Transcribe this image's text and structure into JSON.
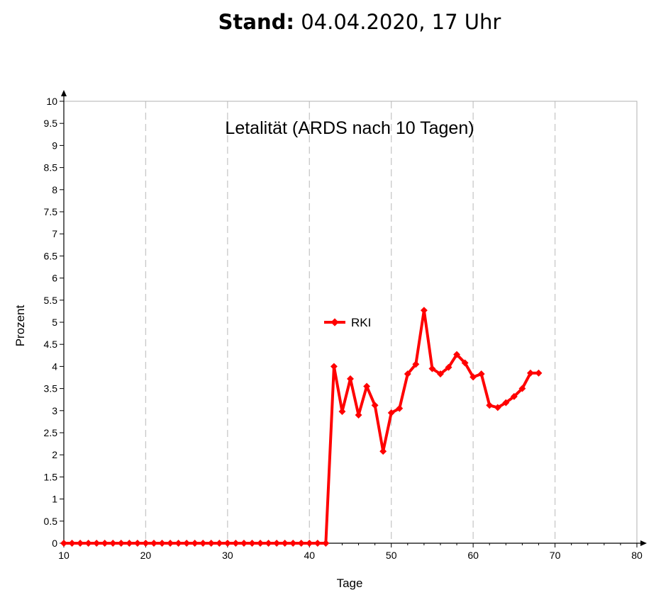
{
  "header": {
    "label": "Stand:",
    "value": " 04.04.2020, 17 Uhr"
  },
  "chart_data": {
    "type": "line",
    "title": "Letalität (ARDS nach 10 Tagen)",
    "xlabel": "Tage",
    "ylabel": "Prozent",
    "xlim": [
      10,
      80
    ],
    "ylim": [
      0,
      10
    ],
    "xticks": [
      10,
      20,
      30,
      40,
      50,
      60,
      70,
      80
    ],
    "yticks": [
      0,
      0.5,
      1,
      1.5,
      2,
      2.5,
      3,
      3.5,
      4,
      4.5,
      5,
      5.5,
      6,
      6.5,
      7,
      7.5,
      8,
      8.5,
      9,
      9.5,
      10
    ],
    "grid": "vertical dashed",
    "legend_position": "center",
    "series": [
      {
        "name": "RKI",
        "color": "#ff0000",
        "x": [
          10,
          11,
          12,
          13,
          14,
          15,
          16,
          17,
          18,
          19,
          20,
          21,
          22,
          23,
          24,
          25,
          26,
          27,
          28,
          29,
          30,
          31,
          32,
          33,
          34,
          35,
          36,
          37,
          38,
          39,
          40,
          41,
          42,
          43,
          44,
          45,
          46,
          47,
          48,
          49,
          50,
          51,
          52,
          53,
          54,
          55,
          56,
          57,
          58,
          59,
          60,
          61,
          62,
          63,
          64,
          65,
          66,
          67,
          68
        ],
        "y": [
          0,
          0,
          0,
          0,
          0,
          0,
          0,
          0,
          0,
          0,
          0,
          0,
          0,
          0,
          0,
          0,
          0,
          0,
          0,
          0,
          0,
          0,
          0,
          0,
          0,
          0,
          0,
          0,
          0,
          0,
          0,
          0,
          0,
          4.0,
          2.98,
          3.72,
          2.9,
          3.55,
          3.12,
          2.08,
          2.95,
          3.05,
          3.83,
          4.05,
          5.27,
          3.95,
          3.83,
          3.98,
          4.27,
          4.08,
          3.76,
          3.83,
          3.12,
          3.07,
          3.18,
          3.32,
          3.5,
          3.85,
          3.85
        ]
      }
    ]
  }
}
